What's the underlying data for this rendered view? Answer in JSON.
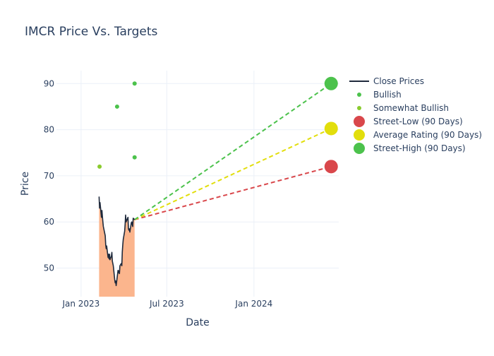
{
  "chart_data": {
    "type": "line",
    "title": "IMCR Price Vs. Targets",
    "xlabel": "Date",
    "ylabel": "Price",
    "x_ticks": [
      {
        "label": "Jan 2023",
        "date": "2023-01-01"
      },
      {
        "label": "Jul 2023",
        "date": "2023-07-01"
      },
      {
        "label": "Jan 2024",
        "date": "2024-01-01"
      }
    ],
    "y_ticks": [
      50,
      60,
      70,
      80,
      90
    ],
    "xlim": [
      "2022-11-10",
      "2024-06-28"
    ],
    "ylim": [
      43.8,
      92.8
    ],
    "grid": true,
    "legend_position": "right",
    "legend": [
      {
        "label": "Close Prices",
        "symbol": "line",
        "color": "#1f2a3c"
      },
      {
        "label": "Bullish",
        "symbol": "small-dot",
        "color": "#4cc24c"
      },
      {
        "label": "Somewhat Bullish",
        "symbol": "small-dot",
        "color": "#8acb2e"
      },
      {
        "label": "Street-Low (90 Days)",
        "symbol": "big-dot",
        "color": "#d9474b"
      },
      {
        "label": "Average Rating (90 Days)",
        "symbol": "big-dot",
        "color": "#e2de0c"
      },
      {
        "label": "Street-High (90 Days)",
        "symbol": "big-dot",
        "color": "#4cc24c"
      }
    ],
    "series": [
      {
        "name": "Close Prices",
        "type": "line",
        "color": "#1f2a3c",
        "fill_color": "#fbb58d",
        "points": [
          [
            "2023-02-08",
            65.5
          ],
          [
            "2023-02-09",
            63.0
          ],
          [
            "2023-02-10",
            64.2
          ],
          [
            "2023-02-13",
            61.0
          ],
          [
            "2023-02-14",
            62.5
          ],
          [
            "2023-02-15",
            61.2
          ],
          [
            "2023-02-16",
            60.0
          ],
          [
            "2023-02-17",
            59.0
          ],
          [
            "2023-02-21",
            57.0
          ],
          [
            "2023-02-22",
            55.0
          ],
          [
            "2023-02-23",
            54.2
          ],
          [
            "2023-02-24",
            54.8
          ],
          [
            "2023-02-27",
            52.3
          ],
          [
            "2023-02-28",
            53.0
          ],
          [
            "2023-03-01",
            52.0
          ],
          [
            "2023-03-02",
            53.0
          ],
          [
            "2023-03-03",
            51.8
          ],
          [
            "2023-03-06",
            52.6
          ],
          [
            "2023-03-07",
            53.4
          ],
          [
            "2023-03-08",
            51.5
          ],
          [
            "2023-03-09",
            51.0
          ],
          [
            "2023-03-10",
            50.5
          ],
          [
            "2023-03-13",
            47.5
          ],
          [
            "2023-03-14",
            46.8
          ],
          [
            "2023-03-15",
            47.2
          ],
          [
            "2023-03-16",
            46.2
          ],
          [
            "2023-03-17",
            47.0
          ],
          [
            "2023-03-20",
            49.5
          ],
          [
            "2023-03-21",
            49.0
          ],
          [
            "2023-03-22",
            49.4
          ],
          [
            "2023-03-23",
            48.8
          ],
          [
            "2023-03-24",
            50.5
          ],
          [
            "2023-03-27",
            51.0
          ],
          [
            "2023-03-28",
            50.5
          ],
          [
            "2023-03-29",
            53.5
          ],
          [
            "2023-03-30",
            55.0
          ],
          [
            "2023-03-31",
            56.2
          ],
          [
            "2023-04-03",
            58.0
          ],
          [
            "2023-04-04",
            59.5
          ],
          [
            "2023-04-05",
            61.5
          ],
          [
            "2023-04-06",
            60.0
          ],
          [
            "2023-04-10",
            61.0
          ],
          [
            "2023-04-11",
            58.5
          ],
          [
            "2023-04-12",
            58.2
          ],
          [
            "2023-04-13",
            58.5
          ],
          [
            "2023-04-14",
            57.8
          ],
          [
            "2023-04-17",
            59.8
          ],
          [
            "2023-04-18",
            60.0
          ],
          [
            "2023-04-19",
            59.5
          ],
          [
            "2023-04-20",
            59.0
          ],
          [
            "2023-04-21",
            60.8
          ],
          [
            "2023-04-24",
            60.5
          ]
        ]
      },
      {
        "name": "Bullish",
        "type": "scatter",
        "color": "#4cc24c",
        "points": [
          [
            "2023-03-18",
            85
          ],
          [
            "2023-04-24",
            90
          ],
          [
            "2023-04-24",
            74
          ]
        ]
      },
      {
        "name": "Somewhat Bullish",
        "type": "scatter",
        "color": "#8acb2e",
        "points": [
          [
            "2023-02-09",
            72
          ]
        ]
      },
      {
        "name": "Street-Low (90 Days)",
        "type": "projection",
        "color": "#d9474b",
        "points": [
          [
            "2023-04-24",
            60.5
          ],
          [
            "2024-06-12",
            72
          ]
        ]
      },
      {
        "name": "Average Rating (90 Days)",
        "type": "projection",
        "color": "#e2de0c",
        "points": [
          [
            "2023-04-24",
            60.5
          ],
          [
            "2024-06-12",
            80.25
          ]
        ]
      },
      {
        "name": "Street-High (90 Days)",
        "type": "projection",
        "color": "#4cc24c",
        "points": [
          [
            "2023-04-24",
            60.5
          ],
          [
            "2024-06-12",
            90
          ]
        ]
      }
    ]
  }
}
